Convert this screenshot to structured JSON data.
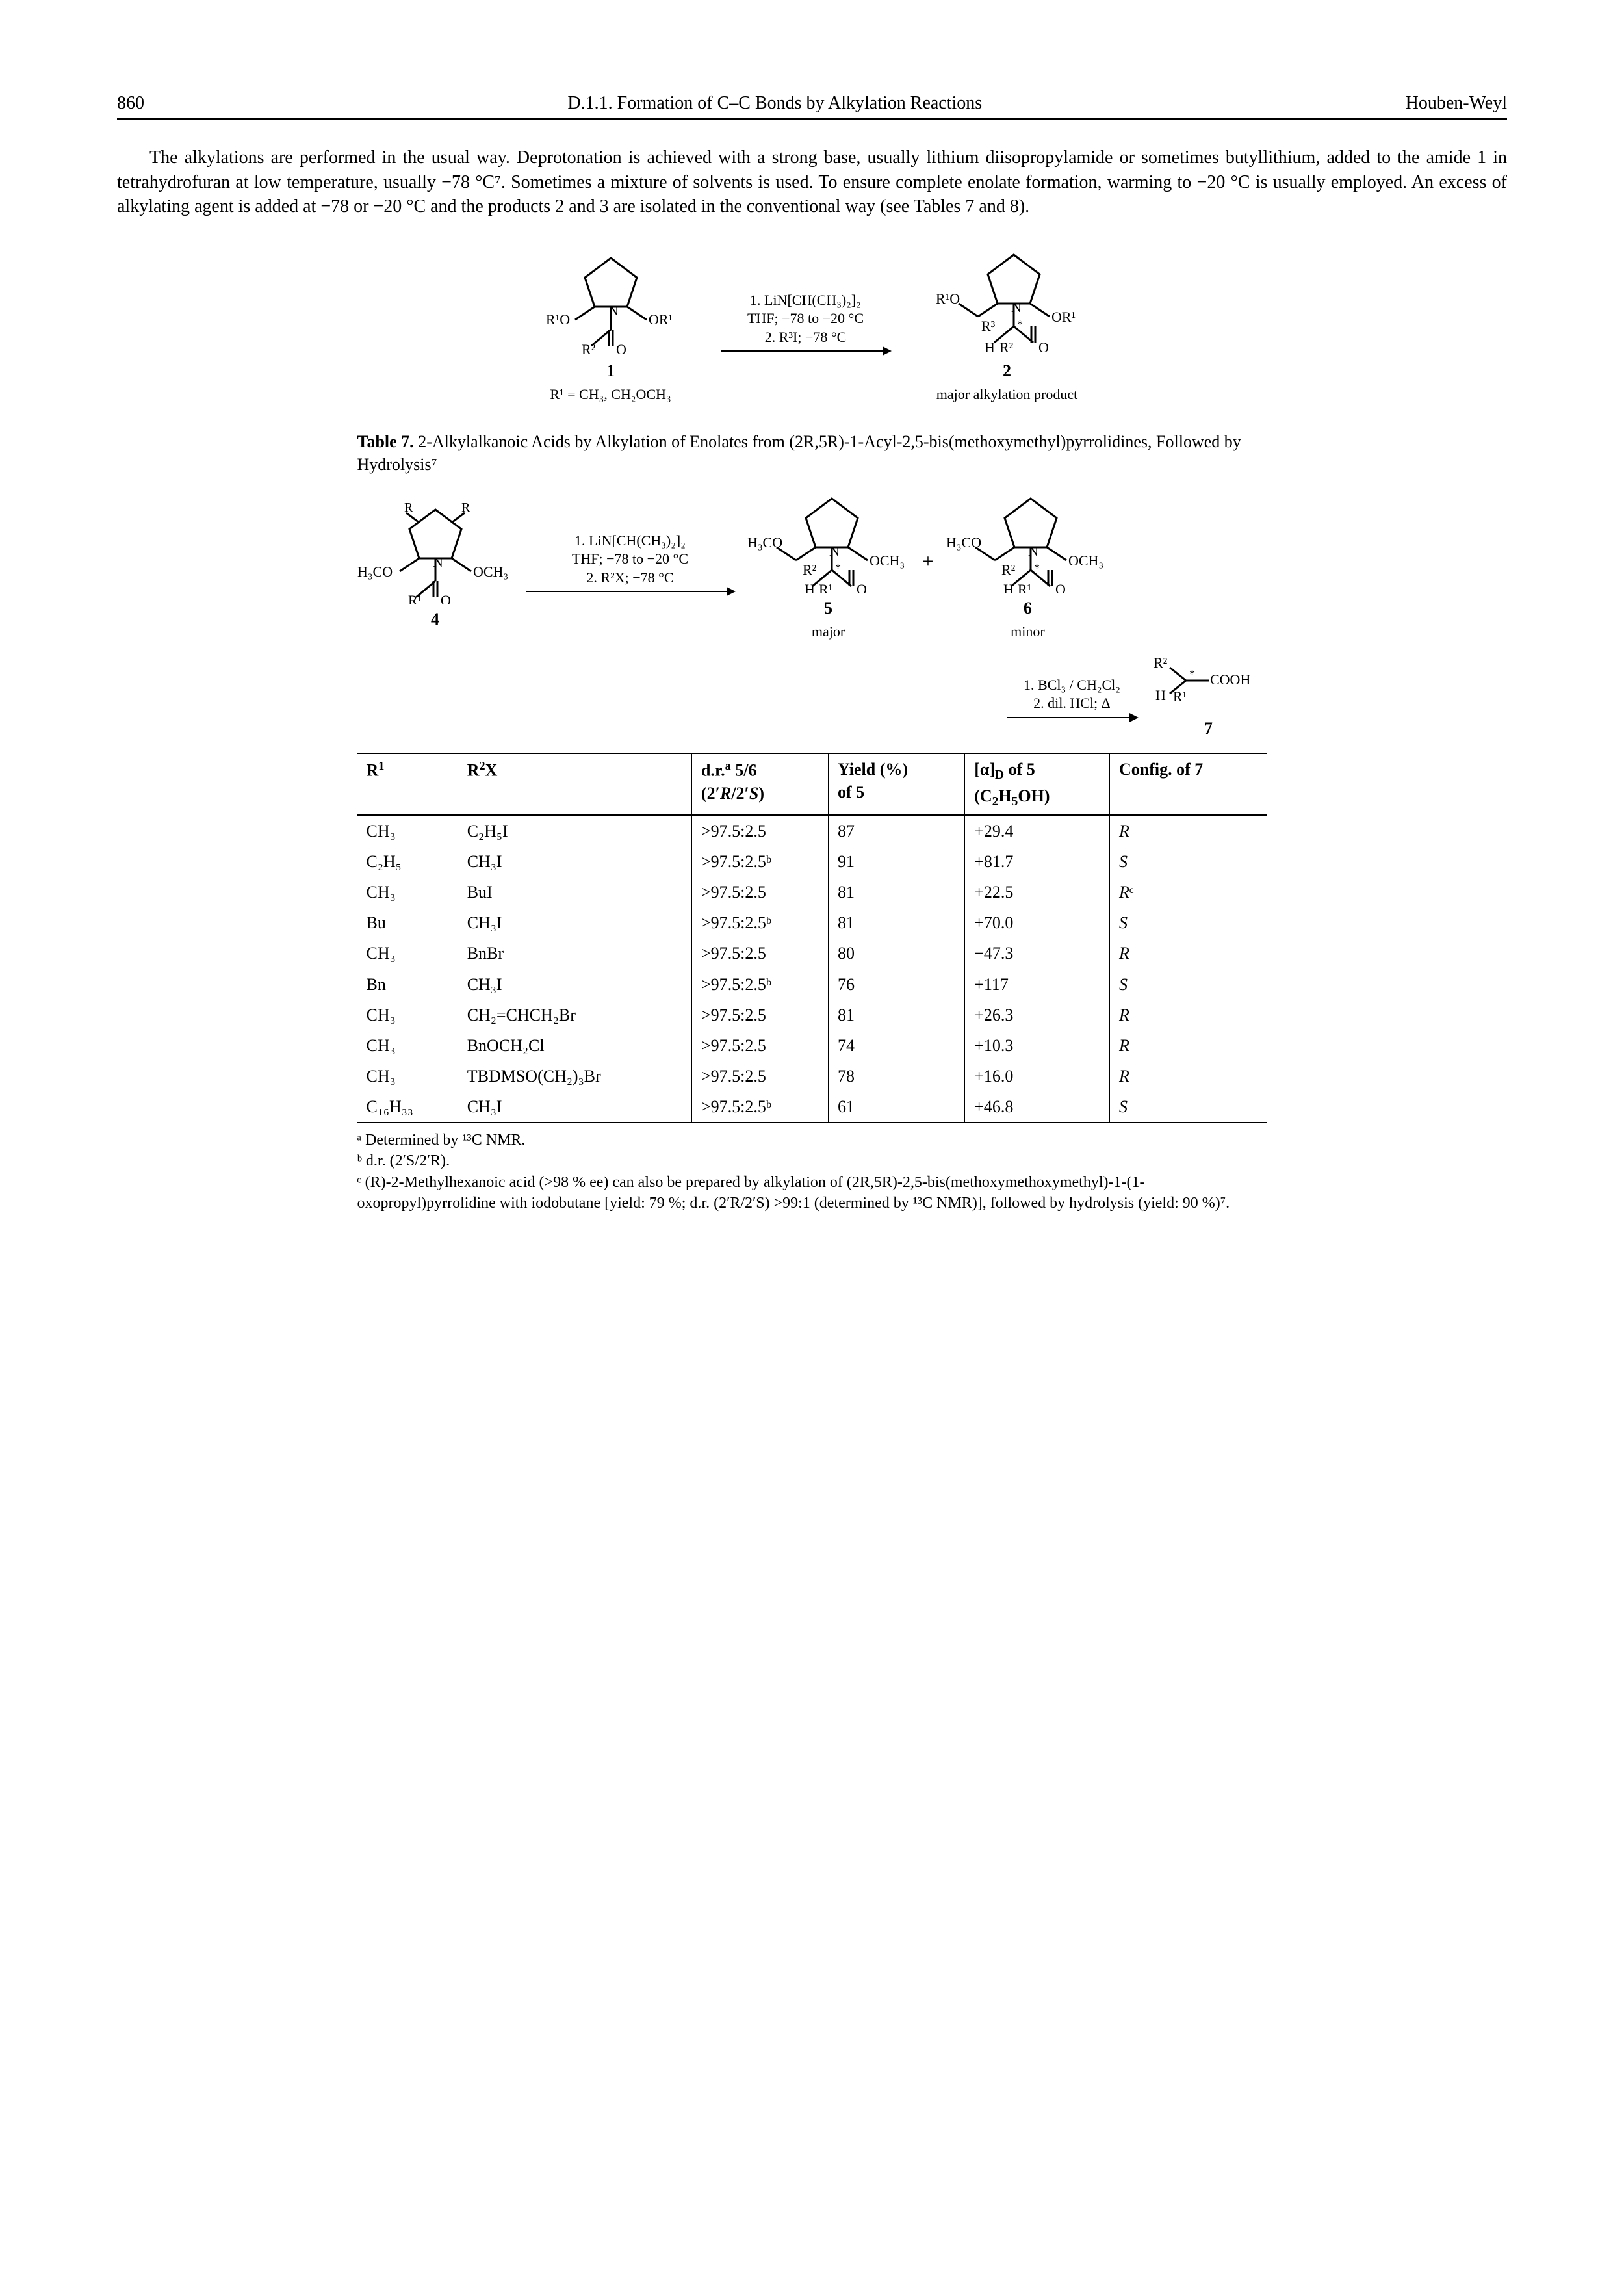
{
  "header": {
    "page": "860",
    "section": "D.1.1. Formation of C–C Bonds by Alkylation Reactions",
    "author": "Houben-Weyl"
  },
  "paragraph": "The alkylations are performed in the usual way. Deprotonation is achieved with a strong base, usually lithium diisopropylamide or sometimes butyllithium, added to the amide 1 in tetrahydrofuran at low temperature, usually −78 °C⁷. Sometimes a mixture of solvents is used. To ensure complete enolate formation, warming to −20 °C is usually employed. An excess of alkylating agent is added at −78 or −20 °C and the products 2 and 3 are isolated in the conventional way (see Tables 7 and 8).",
  "scheme1": {
    "reagent_line1": "1. LiN[CH(CH₃)₂]₂",
    "reagent_line2": "THF; −78 to −20 °C",
    "reagent_line3": "2. R³I; −78 °C",
    "left_label": "1",
    "left_sub": "R¹ = CH₃, CH₂OCH₃",
    "right_label": "2",
    "right_caption": "major alkylation product"
  },
  "table7": {
    "caption_bold": "Table 7.",
    "caption_rest": " 2-Alkylalkanoic Acids by Alkylation of Enolates from (2R,5R)-1-Acyl-2,5-bis(methoxymethyl)pyrrolidines, Followed by Hydrolysis⁷",
    "scheme2": {
      "reagent_line1": "1. LiN[CH(CH₃)₂]₂",
      "reagent_line2": "THF; −78 to −20 °C",
      "reagent_line3": "2. R²X; −78 °C",
      "left_label": "4",
      "mid_label": "5",
      "mid_caption": "major",
      "right_label": "6",
      "right_caption": "minor",
      "plus": "+",
      "step2_line1": "1. BCl₃ / CH₂Cl₂",
      "step2_line2": "2. dil. HCl; Δ",
      "prod_label": "7"
    },
    "columns": [
      "R¹",
      "R²X",
      "d.r.ᵃ 5/6 (2′R/2′S)",
      "Yield (%) of 5",
      "[α]_D of 5 (C₂H₅OH)",
      "Config. of 7"
    ],
    "rows": [
      [
        "CH₃",
        "C₂H₅I",
        ">97.5:2.5",
        "87",
        "+29.4",
        "R"
      ],
      [
        "C₂H₅",
        "CH₃I",
        ">97.5:2.5ᵇ",
        "91",
        "+81.7",
        "S"
      ],
      [
        "CH₃",
        "BuI",
        ">97.5:2.5",
        "81",
        "+22.5",
        "Rᶜ"
      ],
      [
        "Bu",
        "CH₃I",
        ">97.5:2.5ᵇ",
        "81",
        "+70.0",
        "S"
      ],
      [
        "CH₃",
        "BnBr",
        ">97.5:2.5",
        "80",
        "−47.3",
        "R"
      ],
      [
        "Bn",
        "CH₃I",
        ">97.5:2.5ᵇ",
        "76",
        "+117",
        "S"
      ],
      [
        "CH₃",
        "CH₂=CHCH₂Br",
        ">97.5:2.5",
        "81",
        "+26.3",
        "R"
      ],
      [
        "CH₃",
        "BnOCH₂Cl",
        ">97.5:2.5",
        "74",
        "+10.3",
        "R"
      ],
      [
        "CH₃",
        "TBDMSO(CH₂)₃Br",
        ">97.5:2.5",
        "78",
        "+16.0",
        "R"
      ],
      [
        "C₁₆H₃₃",
        "CH₃I",
        ">97.5:2.5ᵇ",
        "61",
        "+46.8",
        "S"
      ]
    ],
    "footnotes": {
      "a": "ᵃ Determined by ¹³C NMR.",
      "b": "ᵇ d.r. (2′S/2′R).",
      "c": "ᶜ (R)-2-Methylhexanoic acid (>98 % ee) can also be prepared by alkylation of (2R,5R)-2,5-bis(methoxymethoxymethyl)-1-(1-oxopropyl)pyrrolidine with iodobutane [yield: 79 %; d.r. (2′R/2′S) >99:1 (determined by ¹³C NMR)], followed by hydrolysis (yield: 90 %)⁷."
    }
  }
}
